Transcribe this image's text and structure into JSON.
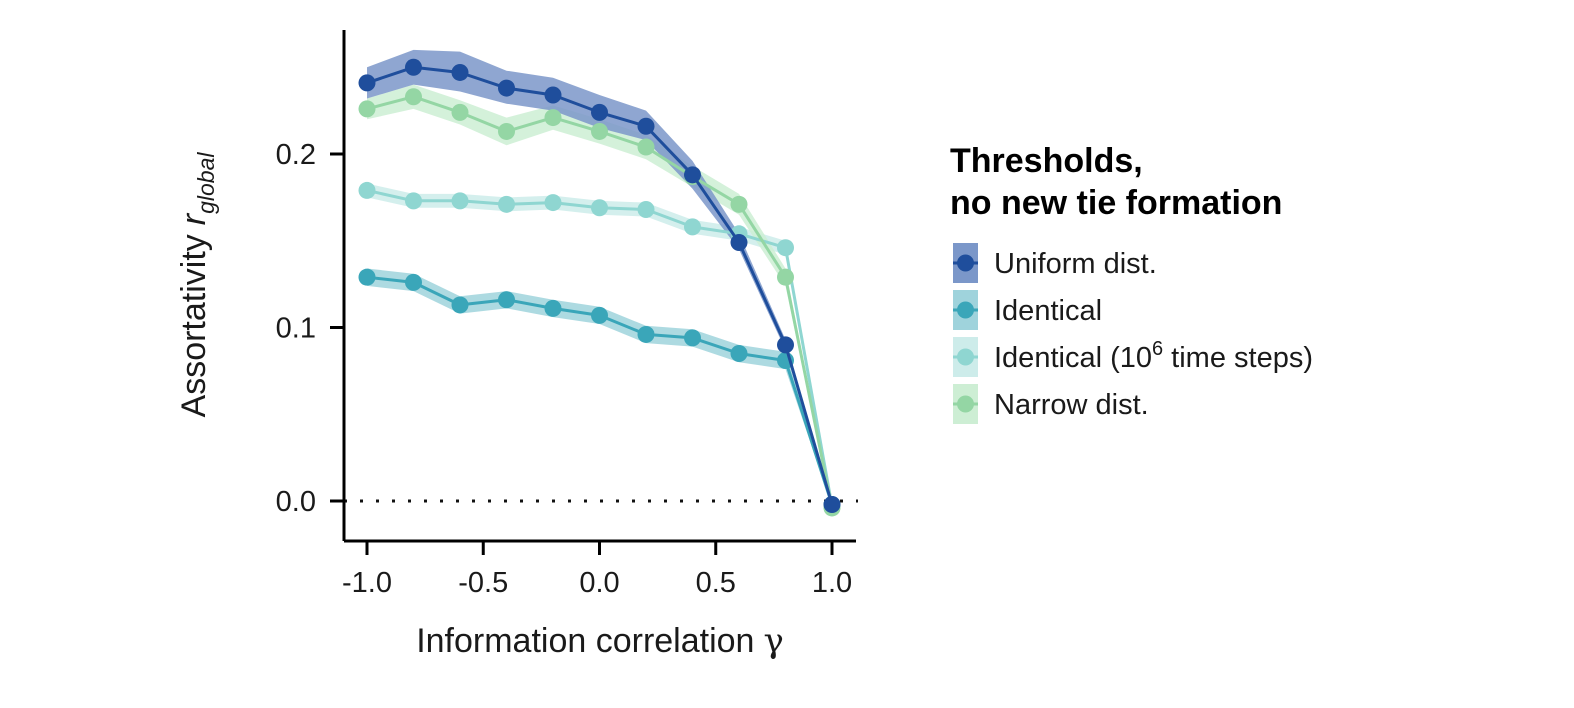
{
  "chart_data": {
    "type": "line",
    "x_label": "Information correlation",
    "x_label_symbol": "γ",
    "y_label": "Assortativity",
    "y_label_symbol": "r",
    "y_label_subscript": "global",
    "x_ticks": [
      "-1.0",
      "-0.5",
      "0.0",
      "0.5",
      "1.0"
    ],
    "y_ticks": [
      "0.0",
      "0.1",
      "0.2"
    ],
    "xlim": [
      -1.1,
      1.1
    ],
    "ylim": [
      -0.023,
      0.272
    ],
    "grid": false,
    "reference_line": {
      "y": 0,
      "style": "dotted"
    },
    "legend": {
      "placement": "right",
      "title_line1": "Thresholds,",
      "title_line2": "no new tie formation"
    },
    "x": [
      -1.0,
      -0.8,
      -0.6,
      -0.4,
      -0.2,
      0.0,
      0.2,
      0.4,
      0.6,
      0.8,
      1.0
    ],
    "series": [
      {
        "name": "Uniform dist.",
        "color": "#1f4e9c",
        "band_color": "#7b97c9",
        "values": [
          0.241,
          0.25,
          0.247,
          0.238,
          0.234,
          0.224,
          0.216,
          0.188,
          0.149,
          0.09,
          -0.002
        ],
        "lower": [
          0.232,
          0.24,
          0.236,
          0.229,
          0.225,
          0.215,
          0.208,
          0.18,
          0.145,
          0.087,
          -0.003
        ],
        "upper": [
          0.25,
          0.26,
          0.259,
          0.248,
          0.244,
          0.234,
          0.225,
          0.196,
          0.154,
          0.093,
          -0.001
        ]
      },
      {
        "name": "Identical",
        "color": "#3aa6b9",
        "band_color": "#9fd3dc",
        "values": [
          0.129,
          0.126,
          0.113,
          0.116,
          0.111,
          0.107,
          0.096,
          0.094,
          0.085,
          0.081,
          -0.002
        ],
        "lower": [
          0.124,
          0.121,
          0.108,
          0.111,
          0.106,
          0.102,
          0.091,
          0.089,
          0.08,
          0.076,
          -0.003
        ],
        "upper": [
          0.134,
          0.131,
          0.118,
          0.121,
          0.116,
          0.112,
          0.101,
          0.099,
          0.09,
          0.086,
          -0.001
        ]
      },
      {
        "name": "Identical (10",
        "name_sup": "6",
        "name_suffix": " time steps)",
        "color": "#8fd6d1",
        "band_color": "#cdecea",
        "values": [
          0.179,
          0.173,
          0.173,
          0.171,
          0.172,
          0.169,
          0.168,
          0.158,
          0.154,
          0.146,
          -0.003
        ],
        "lower": [
          0.175,
          0.169,
          0.169,
          0.167,
          0.168,
          0.165,
          0.164,
          0.154,
          0.15,
          0.142,
          -0.004
        ],
        "upper": [
          0.183,
          0.177,
          0.177,
          0.175,
          0.176,
          0.173,
          0.172,
          0.162,
          0.158,
          0.15,
          -0.002
        ]
      },
      {
        "name": "Narrow dist.",
        "color": "#94d6a4",
        "band_color": "#cdeed4",
        "values": [
          0.226,
          0.233,
          0.224,
          0.213,
          0.221,
          0.213,
          0.204,
          0.187,
          0.171,
          0.129,
          -0.004
        ],
        "lower": [
          0.22,
          0.226,
          0.217,
          0.205,
          0.214,
          0.206,
          0.197,
          0.181,
          0.165,
          0.124,
          -0.005
        ],
        "upper": [
          0.232,
          0.24,
          0.231,
          0.221,
          0.228,
          0.22,
          0.211,
          0.193,
          0.177,
          0.134,
          -0.003
        ]
      }
    ]
  }
}
